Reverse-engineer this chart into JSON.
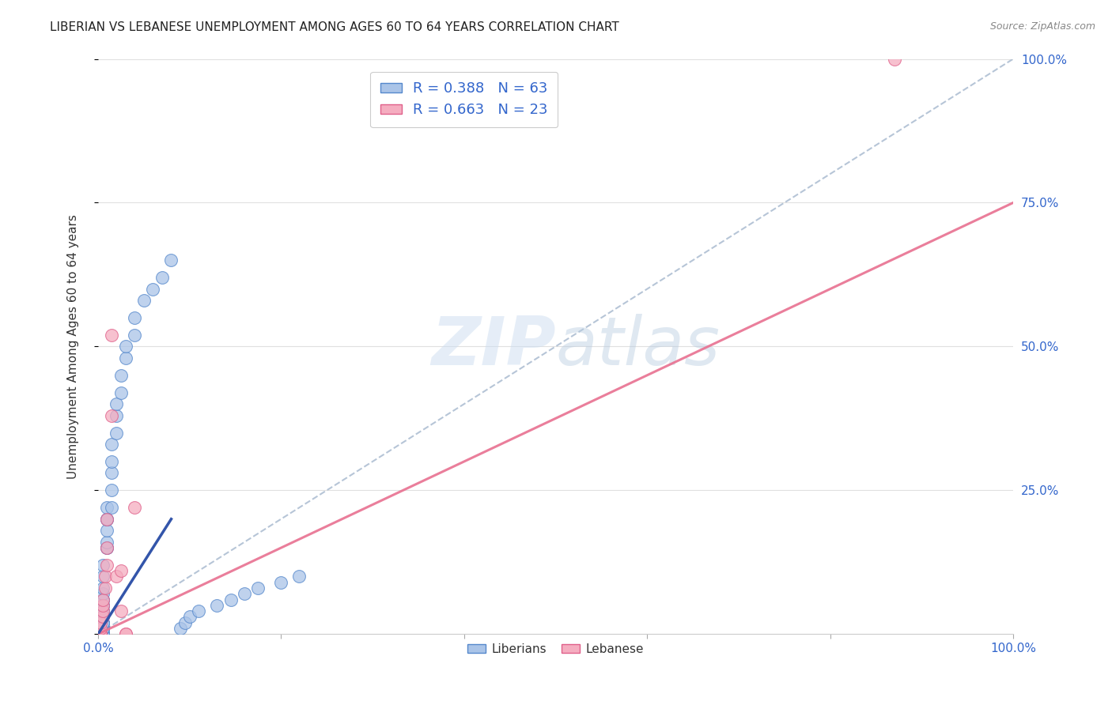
{
  "title": "LIBERIAN VS LEBANESE UNEMPLOYMENT AMONG AGES 60 TO 64 YEARS CORRELATION CHART",
  "source": "Source: ZipAtlas.com",
  "ylabel": "Unemployment Among Ages 60 to 64 years",
  "xlim": [
    0,
    1.0
  ],
  "ylim": [
    0,
    1.0
  ],
  "watermark_zip": "ZIP",
  "watermark_atlas": "atlas",
  "liberian_color": "#aac4e8",
  "lebanese_color": "#f5adc0",
  "liberian_edge": "#5588cc",
  "lebanese_edge": "#e0608a",
  "trend_liberian_color": "#8ab0d8",
  "trend_lebanese_color": "#e87090",
  "trend_lib_solid_color": "#3355aa",
  "R_liberian": 0.388,
  "N_liberian": 63,
  "R_lebanese": 0.663,
  "N_lebanese": 23,
  "legend_liberian": "Liberians",
  "legend_lebanese": "Lebanese",
  "liberian_x": [
    0.005,
    0.005,
    0.005,
    0.005,
    0.005,
    0.005,
    0.005,
    0.005,
    0.005,
    0.005,
    0.005,
    0.005,
    0.005,
    0.005,
    0.005,
    0.005,
    0.005,
    0.005,
    0.005,
    0.005,
    0.005,
    0.005,
    0.005,
    0.005,
    0.005,
    0.005,
    0.005,
    0.005,
    0.01,
    0.01,
    0.01,
    0.01,
    0.01,
    0.01,
    0.01,
    0.015,
    0.015,
    0.015,
    0.015,
    0.015,
    0.02,
    0.02,
    0.02,
    0.025,
    0.025,
    0.03,
    0.03,
    0.04,
    0.04,
    0.05,
    0.06,
    0.07,
    0.08,
    0.09,
    0.095,
    0.1,
    0.11,
    0.13,
    0.145,
    0.16,
    0.175,
    0.2,
    0.22
  ],
  "liberian_y": [
    0.0,
    0.0,
    0.0,
    0.0,
    0.0,
    0.0,
    0.0,
    0.01,
    0.01,
    0.01,
    0.01,
    0.01,
    0.02,
    0.02,
    0.02,
    0.02,
    0.03,
    0.03,
    0.04,
    0.04,
    0.05,
    0.05,
    0.06,
    0.06,
    0.07,
    0.08,
    0.1,
    0.12,
    0.15,
    0.15,
    0.16,
    0.18,
    0.2,
    0.2,
    0.22,
    0.22,
    0.25,
    0.28,
    0.3,
    0.33,
    0.35,
    0.38,
    0.4,
    0.42,
    0.45,
    0.48,
    0.5,
    0.52,
    0.55,
    0.58,
    0.6,
    0.62,
    0.65,
    0.01,
    0.02,
    0.03,
    0.04,
    0.05,
    0.06,
    0.07,
    0.08,
    0.09,
    0.1
  ],
  "lebanese_x": [
    0.003,
    0.003,
    0.003,
    0.003,
    0.003,
    0.005,
    0.005,
    0.005,
    0.005,
    0.008,
    0.008,
    0.01,
    0.01,
    0.01,
    0.015,
    0.015,
    0.02,
    0.025,
    0.025,
    0.03,
    0.03,
    0.04,
    0.87
  ],
  "lebanese_y": [
    0.0,
    0.0,
    0.0,
    0.01,
    0.02,
    0.03,
    0.04,
    0.05,
    0.06,
    0.08,
    0.1,
    0.12,
    0.15,
    0.2,
    0.38,
    0.52,
    0.1,
    0.04,
    0.11,
    0.0,
    0.0,
    0.22,
    1.0
  ],
  "background_color": "#ffffff",
  "grid_color": "#e0e0e0",
  "right_tick_color": "#3366cc",
  "bottom_tick_color": "#3366cc"
}
